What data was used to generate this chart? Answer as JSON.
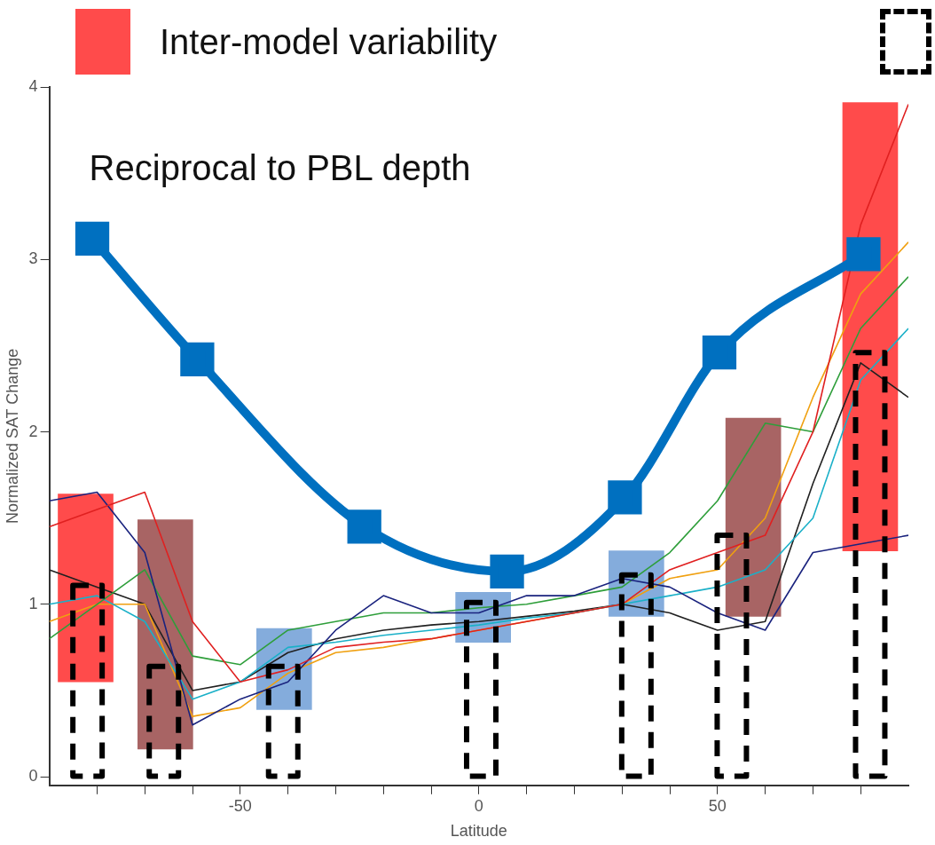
{
  "chart_data": {
    "type": "line",
    "xlabel": "Latitude",
    "ylabel": "Normalized SAT Change",
    "annotations": [
      "Reciprocal to PBL depth"
    ],
    "legend": "top",
    "grid": false,
    "xlim": [
      -90,
      90
    ],
    "xticks": [
      {
        "value": -80,
        "label": null
      },
      {
        "value": -70,
        "label": null
      },
      {
        "value": -60,
        "label": null
      },
      -50,
      {
        "value": -40,
        "label": null
      },
      {
        "value": -30,
        "label": null
      },
      {
        "value": -20,
        "label": null
      },
      {
        "value": -10,
        "label": null
      },
      0,
      {
        "value": 10,
        "label": null
      },
      {
        "value": 20,
        "label": null
      },
      {
        "value": 30,
        "label": null
      },
      {
        "value": 40,
        "label": null
      },
      50,
      {
        "value": 60,
        "label": null
      },
      {
        "value": 70,
        "label": null
      },
      {
        "value": 80,
        "label": null
      }
    ],
    "ylim": [
      -0.05,
      4
    ],
    "yticks": [
      0,
      1,
      2,
      3,
      4
    ],
    "x": [
      -90,
      -80,
      -70,
      -60,
      -50,
      -40,
      -30,
      -20,
      -10,
      0,
      10,
      20,
      30,
      40,
      50,
      60,
      70,
      80,
      90
    ],
    "series": [
      {
        "name": "Inter-model variability",
        "type": "bar",
        "x": [
          -82.4,
          -65.7,
          -40.8,
          0.9,
          33,
          57.5,
          82
        ],
        "base": [
          0.55,
          0.16,
          0.39,
          0.78,
          0.93,
          0.93,
          1.31
        ],
        "values": [
          1.09,
          1.33,
          0.47,
          0.29,
          0.38,
          1.15,
          2.6
        ],
        "colors": [
          "#ff4b4b",
          "#a86464",
          "#84acdc",
          "#84acdc",
          "#84acdc",
          "#a86464",
          "#ff4b4b"
        ]
      },
      {
        "color": "#e02020",
        "marker": "none",
        "values": [
          1.45,
          1.55,
          1.65,
          0.9,
          0.55,
          0.62,
          0.75,
          0.78,
          0.8,
          0.85,
          0.9,
          0.95,
          1.0,
          1.2,
          1.3,
          1.4,
          2.0,
          3.2,
          3.9
        ]
      },
      {
        "color": "#1a237e",
        "marker": "none",
        "values": [
          1.6,
          1.65,
          1.3,
          0.3,
          0.45,
          0.55,
          0.85,
          1.05,
          0.95,
          0.95,
          1.05,
          1.05,
          1.15,
          1.1,
          0.95,
          0.85,
          1.3,
          1.35,
          1.4
        ]
      },
      {
        "color": "#2e9e3a",
        "marker": "none",
        "values": [
          0.8,
          1.0,
          1.2,
          0.7,
          0.65,
          0.85,
          0.9,
          0.95,
          0.95,
          0.98,
          1.0,
          1.05,
          1.1,
          1.3,
          1.6,
          2.05,
          2.0,
          2.6,
          2.9
        ]
      },
      {
        "color": "#1ab0c8",
        "marker": "none",
        "values": [
          1.0,
          1.05,
          0.9,
          0.45,
          0.55,
          0.75,
          0.78,
          0.82,
          0.85,
          0.88,
          0.92,
          0.95,
          1.0,
          1.05,
          1.1,
          1.2,
          1.5,
          2.3,
          2.6
        ]
      },
      {
        "color": "#f0a010",
        "marker": "none",
        "values": [
          0.9,
          1.0,
          1.0,
          0.35,
          0.4,
          0.6,
          0.72,
          0.75,
          0.8,
          0.85,
          0.9,
          0.95,
          1.0,
          1.15,
          1.2,
          1.5,
          2.2,
          2.8,
          3.1
        ]
      },
      {
        "color": "#202020",
        "marker": "none",
        "values": [
          1.2,
          1.1,
          1.0,
          0.5,
          0.55,
          0.72,
          0.8,
          0.85,
          0.88,
          0.9,
          0.93,
          0.96,
          1.0,
          0.95,
          0.85,
          0.9,
          1.7,
          2.4,
          2.2
        ]
      },
      {
        "color": "#0070c0",
        "marker": "square",
        "x": [
          -81,
          -59,
          -24,
          5.9,
          30.6,
          50.4,
          80.6
        ],
        "values": [
          3.12,
          2.42,
          1.45,
          1.19,
          1.62,
          2.46,
          3.03
        ]
      },
      {
        "type": "bar",
        "color": "#000000",
        "line_style": "dashed",
        "x": [
          -82,
          -66,
          -41,
          0.5,
          33,
          53,
          82
        ],
        "values": [
          1.11,
          0.64,
          0.64,
          1.01,
          1.17,
          1.4,
          2.46
        ]
      }
    ]
  }
}
